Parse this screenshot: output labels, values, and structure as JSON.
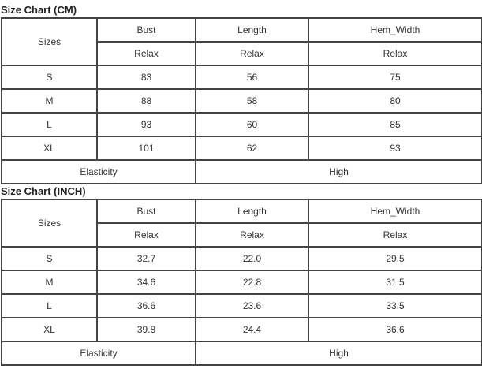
{
  "charts": [
    {
      "title": "Size Chart (CM)",
      "sizes_label": "Sizes",
      "columns": [
        "Bust",
        "Length",
        "Hem_Width"
      ],
      "subheaders": [
        "Relax",
        "Relax",
        "Relax"
      ],
      "rows": [
        {
          "size": "S",
          "values": [
            "83",
            "56",
            "75"
          ]
        },
        {
          "size": "M",
          "values": [
            "88",
            "58",
            "80"
          ]
        },
        {
          "size": "L",
          "values": [
            "93",
            "60",
            "85"
          ]
        },
        {
          "size": "XL",
          "values": [
            "101",
            "62",
            "93"
          ]
        }
      ],
      "elasticity_label": "Elasticity",
      "elasticity_value": "High"
    },
    {
      "title": "Size Chart (INCH)",
      "sizes_label": "Sizes",
      "columns": [
        "Bust",
        "Length",
        "Hem_Width"
      ],
      "subheaders": [
        "Relax",
        "Relax",
        "Relax"
      ],
      "rows": [
        {
          "size": "S",
          "values": [
            "32.7",
            "22.0",
            "29.5"
          ]
        },
        {
          "size": "M",
          "values": [
            "34.6",
            "22.8",
            "31.5"
          ]
        },
        {
          "size": "L",
          "values": [
            "36.6",
            "23.6",
            "33.5"
          ]
        },
        {
          "size": "XL",
          "values": [
            "39.8",
            "24.4",
            "36.6"
          ]
        }
      ],
      "elasticity_label": "Elasticity",
      "elasticity_value": "High"
    }
  ]
}
